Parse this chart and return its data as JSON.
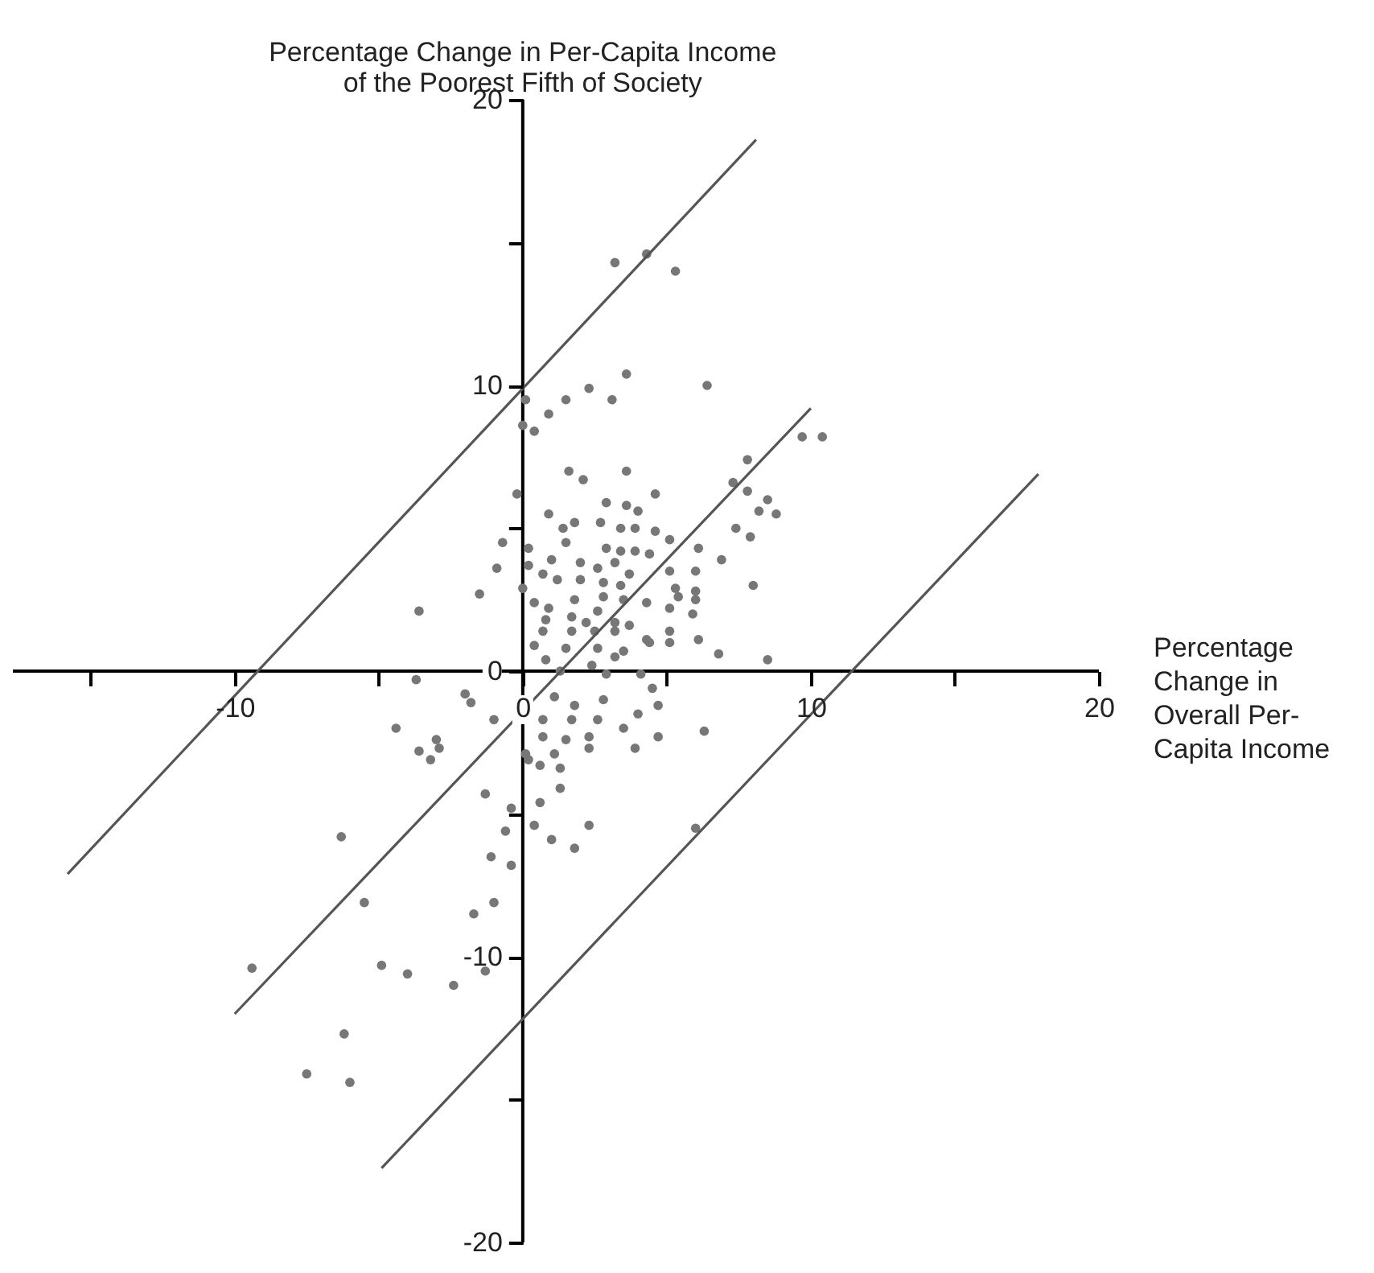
{
  "chart_data": {
    "type": "scatter",
    "xlabel": "Percentage\nChange in\nOverall Per-\nCapita Income",
    "ylabel": "Percentage Change in Per-Capita Income\nof the Poorest Fifth of Society",
    "xlim": [
      -17.7,
      20
    ],
    "ylim": [
      -20,
      20
    ],
    "xticks": [
      {
        "value": -15,
        "label": null
      },
      -10,
      {
        "value": -5,
        "label": null
      },
      0,
      {
        "value": 5,
        "label": null
      },
      10,
      {
        "value": 15,
        "label": null
      },
      20
    ],
    "yticks": [
      -20,
      {
        "value": -15,
        "label": null
      },
      -10,
      {
        "value": -5,
        "label": null
      },
      0,
      {
        "value": 5,
        "label": null
      },
      10,
      {
        "value": 15,
        "label": null
      },
      20
    ],
    "grid": false,
    "marker": "circle",
    "series": [
      {
        "color": "#777777",
        "x": [
          3.2,
          4.3,
          5.3,
          3.6,
          2.3,
          3.1,
          1.5,
          6.4,
          0.1,
          0.9,
          0,
          0.4,
          9.7,
          10.4,
          1.6,
          2.1,
          3.6,
          7.8,
          -0.2,
          4.6,
          7.3,
          7.8,
          8.5,
          8.2,
          8.8,
          2.9,
          3.6,
          4.0,
          0.9,
          1.4,
          1.8,
          2.7,
          3.4,
          3.9,
          4.6,
          5.1,
          -0.7,
          0.2,
          1.5,
          2.9,
          3.4,
          3.9,
          4.4,
          7.4,
          7.9,
          6.1,
          6.9,
          -0.9,
          0.2,
          1.0,
          2.0,
          2.6,
          3.2,
          3.7,
          5.1,
          6.0,
          -1.5,
          0,
          0.7,
          1.2,
          2.0,
          2.8,
          3.4,
          8.0,
          5.3,
          6.0,
          2.8,
          3.5,
          4.3,
          5.4,
          6.0,
          0.4,
          0.9,
          1.8,
          2.6,
          5.1,
          5.9,
          0.8,
          1.7,
          2.2,
          3.2,
          3.7,
          0.7,
          1.7,
          2.5,
          3.2,
          4.3,
          5.1,
          6.1,
          0.4,
          1.5,
          2.6,
          3.5,
          4.4,
          5.1,
          6.8,
          8.5,
          0.8,
          3.2,
          2.4,
          4.1,
          1.3,
          -3.6,
          -3.7,
          -2.0,
          -1.8,
          -1.0,
          -4.4,
          -3.0,
          -3.6,
          -2.9,
          -3.2,
          -1.3,
          -0.4,
          0.2,
          2.9,
          4.5,
          1.1,
          1.8,
          2.8,
          0.7,
          1.7,
          2.6,
          3.5,
          4.0,
          4.7,
          4.7,
          6.3,
          0.7,
          1.5,
          2.3,
          2.3,
          1.1,
          0.1,
          0.6,
          1.3,
          3.9,
          1.3,
          0.6,
          0.4,
          2.3,
          1.0,
          1.8,
          6.0,
          -0.6,
          -0.4,
          -1.0,
          -6.3,
          -1.1,
          -5.5,
          -1.7,
          -9.4,
          -4.9,
          -4.0,
          -2.4,
          -1.3,
          -6.2,
          -7.5,
          -6.0
        ],
        "values": [
          14.3,
          14.6,
          14.0,
          10.4,
          9.9,
          9.5,
          9.5,
          10.0,
          9.5,
          9.0,
          8.6,
          8.4,
          8.2,
          8.2,
          7.0,
          6.7,
          7.0,
          7.4,
          6.2,
          6.2,
          6.6,
          6.3,
          6.0,
          5.6,
          5.5,
          5.9,
          5.8,
          5.6,
          5.5,
          5.0,
          5.2,
          5.2,
          5.0,
          5.0,
          4.9,
          4.6,
          4.5,
          4.3,
          4.5,
          4.3,
          4.2,
          4.2,
          4.1,
          5.0,
          4.7,
          4.3,
          3.9,
          3.6,
          3.7,
          3.9,
          3.8,
          3.6,
          3.8,
          3.4,
          3.5,
          3.5,
          2.7,
          2.9,
          3.4,
          3.2,
          3.2,
          3.1,
          3.0,
          3.0,
          2.9,
          2.8,
          2.6,
          2.5,
          2.4,
          2.6,
          2.5,
          2.4,
          2.2,
          2.5,
          2.1,
          2.2,
          2.0,
          1.8,
          1.9,
          1.7,
          1.7,
          1.6,
          1.4,
          1.4,
          1.4,
          1.4,
          1.1,
          1.4,
          1.1,
          0.9,
          0.8,
          0.8,
          0.7,
          1.0,
          1.0,
          0.6,
          0.4,
          0.4,
          0.5,
          0.2,
          -0.1,
          0,
          2.1,
          -0.3,
          -0.8,
          -1.1,
          -1.7,
          -2.0,
          -2.4,
          -2.8,
          -2.7,
          -3.1,
          -4.3,
          -4.8,
          -3.1,
          -0.1,
          -0.6,
          -0.9,
          -1.2,
          -1.0,
          -1.7,
          -1.7,
          -1.7,
          -2.0,
          -1.5,
          -1.2,
          -2.3,
          -2.1,
          -2.3,
          -2.4,
          -2.3,
          -2.7,
          -2.9,
          -2.9,
          -3.3,
          -3.4,
          -2.7,
          -4.1,
          -4.6,
          -5.4,
          -5.4,
          -5.9,
          -6.2,
          -5.5,
          -5.6,
          -6.8,
          -8.1,
          -5.8,
          -6.5,
          -8.1,
          -8.5,
          -10.4,
          -10.3,
          -10.6,
          -11.0,
          -10.5,
          -12.7,
          -14.1,
          -14.4
        ]
      },
      {
        "type": "line",
        "marker": "none",
        "color": "#555555",
        "x": [
          -10,
          10
        ],
        "values": [
          -12,
          9.2
        ]
      },
      {
        "type": "line",
        "marker": "none",
        "color": "#555555",
        "x": [
          -15.8,
          8.1
        ],
        "values": [
          -7.1,
          18.6
        ]
      },
      {
        "type": "line",
        "marker": "none",
        "color": "#555555",
        "x": [
          -4.9,
          17.9
        ],
        "values": [
          -17.4,
          6.9
        ]
      }
    ]
  }
}
